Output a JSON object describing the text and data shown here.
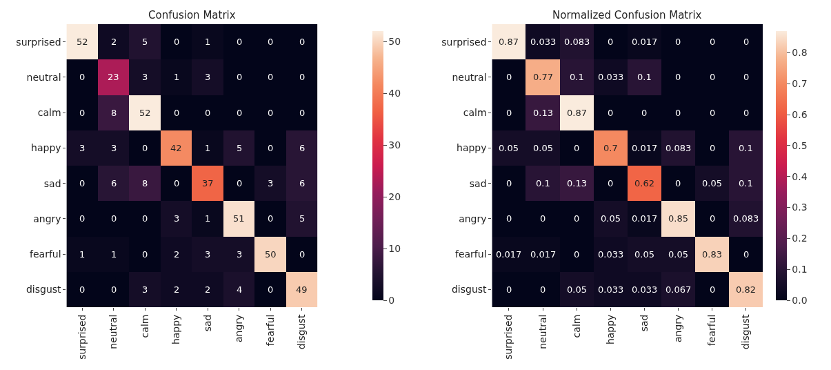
{
  "chart_data": [
    {
      "type": "heatmap",
      "title": "Confusion Matrix",
      "categories": [
        "surprised",
        "neutral",
        "calm",
        "happy",
        "sad",
        "angry",
        "fearful",
        "disgust"
      ],
      "y_categories": [
        "surprised",
        "neutral",
        "calm",
        "happy",
        "sad",
        "angry",
        "fearful",
        "disgust"
      ],
      "cells": [
        [
          52,
          2,
          5,
          0,
          1,
          0,
          0,
          0
        ],
        [
          0,
          23,
          3,
          1,
          3,
          0,
          0,
          0
        ],
        [
          0,
          8,
          52,
          0,
          0,
          0,
          0,
          0
        ],
        [
          3,
          3,
          0,
          42,
          1,
          5,
          0,
          6
        ],
        [
          0,
          6,
          8,
          0,
          37,
          0,
          3,
          6
        ],
        [
          0,
          0,
          0,
          3,
          1,
          51,
          0,
          5
        ],
        [
          1,
          1,
          0,
          2,
          3,
          3,
          50,
          0
        ],
        [
          0,
          0,
          3,
          2,
          2,
          4,
          0,
          49
        ]
      ],
      "clim": [
        0,
        52
      ],
      "cticks": [
        0,
        10,
        20,
        30,
        40,
        50
      ],
      "data_labels": true
    },
    {
      "type": "heatmap",
      "title": "Normalized Confusion Matrix",
      "categories": [
        "surprised",
        "neutral",
        "calm",
        "happy",
        "sad",
        "angry",
        "fearful",
        "disgust"
      ],
      "y_categories": [
        "surprised",
        "neutral",
        "calm",
        "happy",
        "sad",
        "angry",
        "fearful",
        "disgust"
      ],
      "cells": [
        [
          0.87,
          0.033,
          0.083,
          0,
          0.017,
          0,
          0,
          0
        ],
        [
          0,
          0.77,
          0.1,
          0.033,
          0.1,
          0,
          0,
          0
        ],
        [
          0,
          0.13,
          0.87,
          0,
          0,
          0,
          0,
          0
        ],
        [
          0.05,
          0.05,
          0,
          0.7,
          0.017,
          0.083,
          0,
          0.1
        ],
        [
          0,
          0.1,
          0.13,
          0,
          0.62,
          0,
          0.05,
          0.1
        ],
        [
          0,
          0,
          0,
          0.05,
          0.017,
          0.85,
          0,
          0.083
        ],
        [
          0.017,
          0.017,
          0,
          0.033,
          0.05,
          0.05,
          0.83,
          0
        ],
        [
          0,
          0,
          0.05,
          0.033,
          0.033,
          0.067,
          0,
          0.82
        ]
      ],
      "clim": [
        0,
        0.87
      ],
      "cticks": [
        {
          "value": 0,
          "label": "0.0"
        },
        0.1,
        0.2,
        0.3,
        0.4,
        0.5,
        0.6,
        0.7,
        0.8
      ],
      "data_labels": true
    }
  ]
}
